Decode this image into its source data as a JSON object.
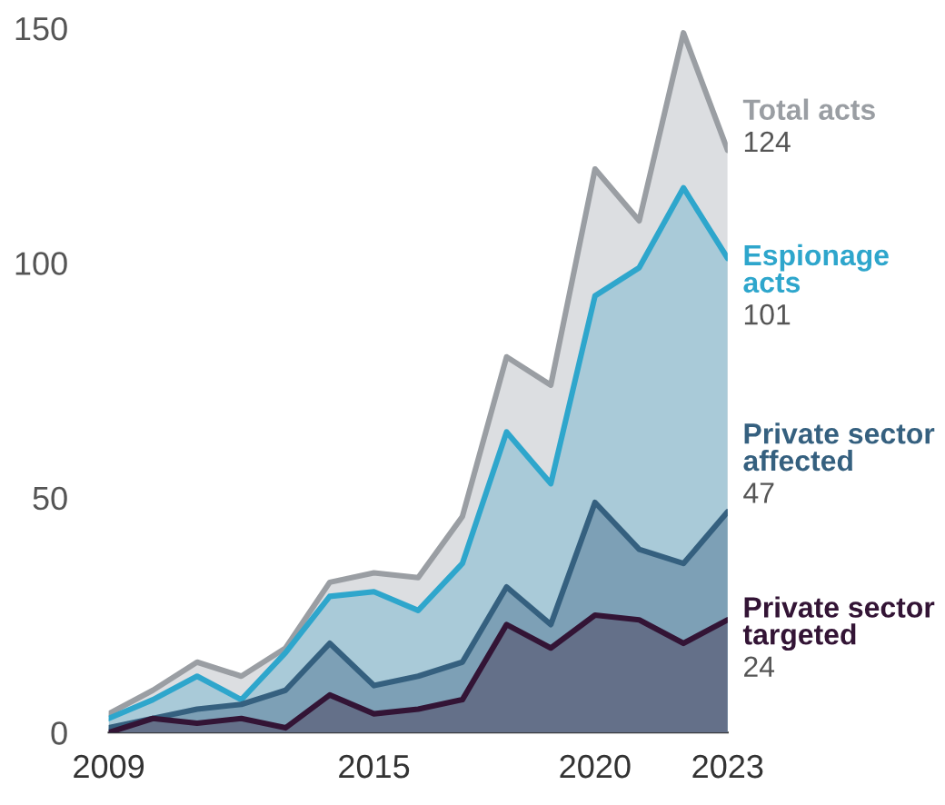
{
  "chart_data": {
    "type": "area",
    "x": [
      2009,
      2010,
      2011,
      2012,
      2013,
      2014,
      2015,
      2016,
      2017,
      2018,
      2019,
      2020,
      2021,
      2022,
      2023
    ],
    "xlim": [
      2009,
      2023
    ],
    "xticks": [
      2009,
      2015,
      2020,
      2023
    ],
    "ylim": [
      0,
      150
    ],
    "yticks": [
      0,
      50,
      100,
      150
    ],
    "grid": false,
    "legend": false,
    "series": [
      {
        "name": "Total acts",
        "color": "#9a9ea3",
        "values": [
          4,
          9,
          15,
          12,
          18,
          32,
          34,
          33,
          46,
          80,
          74,
          120,
          109,
          149,
          124
        ],
        "value_labels": [
          null,
          null,
          null,
          null,
          null,
          null,
          null,
          null,
          null,
          null,
          null,
          null,
          null,
          null,
          "124"
        ]
      },
      {
        "name": "Espionage acts",
        "color": "#2ea6cc",
        "values": [
          3,
          7,
          12,
          7,
          17,
          29,
          30,
          26,
          36,
          64,
          53,
          93,
          99,
          116,
          101
        ],
        "value_labels": [
          null,
          null,
          null,
          null,
          null,
          null,
          null,
          null,
          null,
          null,
          null,
          null,
          null,
          null,
          "101"
        ]
      },
      {
        "name": "Private sector affected",
        "color": "#35607f",
        "values": [
          1,
          3,
          5,
          6,
          9,
          19,
          10,
          12,
          15,
          31,
          23,
          49,
          39,
          36,
          47
        ],
        "value_labels": [
          null,
          null,
          null,
          null,
          null,
          null,
          null,
          null,
          null,
          null,
          null,
          null,
          null,
          null,
          "47"
        ]
      },
      {
        "name": "Private sector targeted",
        "color": "#331435",
        "values": [
          0,
          3,
          2,
          3,
          1,
          8,
          4,
          5,
          7,
          23,
          18,
          25,
          24,
          19,
          24
        ],
        "value_labels": [
          null,
          null,
          null,
          null,
          null,
          null,
          null,
          null,
          null,
          null,
          null,
          null,
          null,
          null,
          "24"
        ]
      }
    ]
  }
}
